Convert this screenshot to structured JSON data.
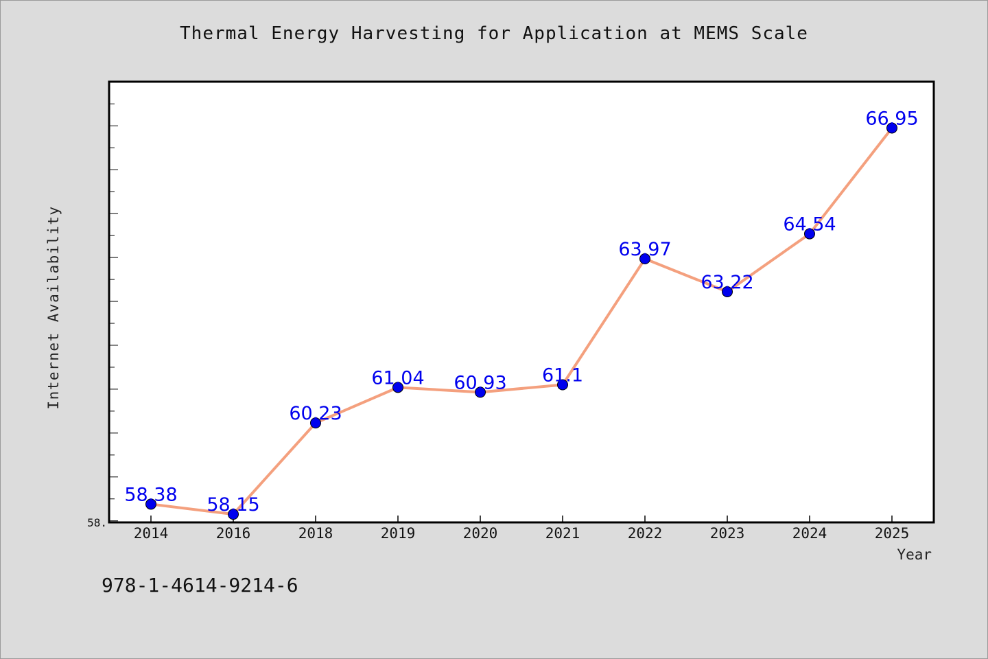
{
  "chart_data": {
    "type": "line",
    "title": "Thermal Energy Harvesting for Application at MEMS Scale",
    "xlabel": "Year",
    "ylabel": "Internet Availability",
    "categories": [
      "2014",
      "2016",
      "2018",
      "2019",
      "2020",
      "2021",
      "2022",
      "2023",
      "2024",
      "2025"
    ],
    "series": [
      {
        "values": [
          58.38,
          58.15,
          60.23,
          61.04,
          60.93,
          61.1,
          63.97,
          63.22,
          64.54,
          66.95
        ],
        "labels": [
          "58.38",
          "58.15",
          "60.23",
          "61.04",
          "60.93",
          "61.1",
          "63.97",
          "63.22",
          "64.54",
          "66.95"
        ]
      }
    ],
    "ylim": [
      57.98,
      67.99
    ],
    "y_tick_label": "58.",
    "grid": false,
    "colors": {
      "line": "#f4a07e",
      "marker": "#0000ee",
      "label": "#0000ee"
    }
  },
  "footer_text": "978-1-4614-9214-6"
}
